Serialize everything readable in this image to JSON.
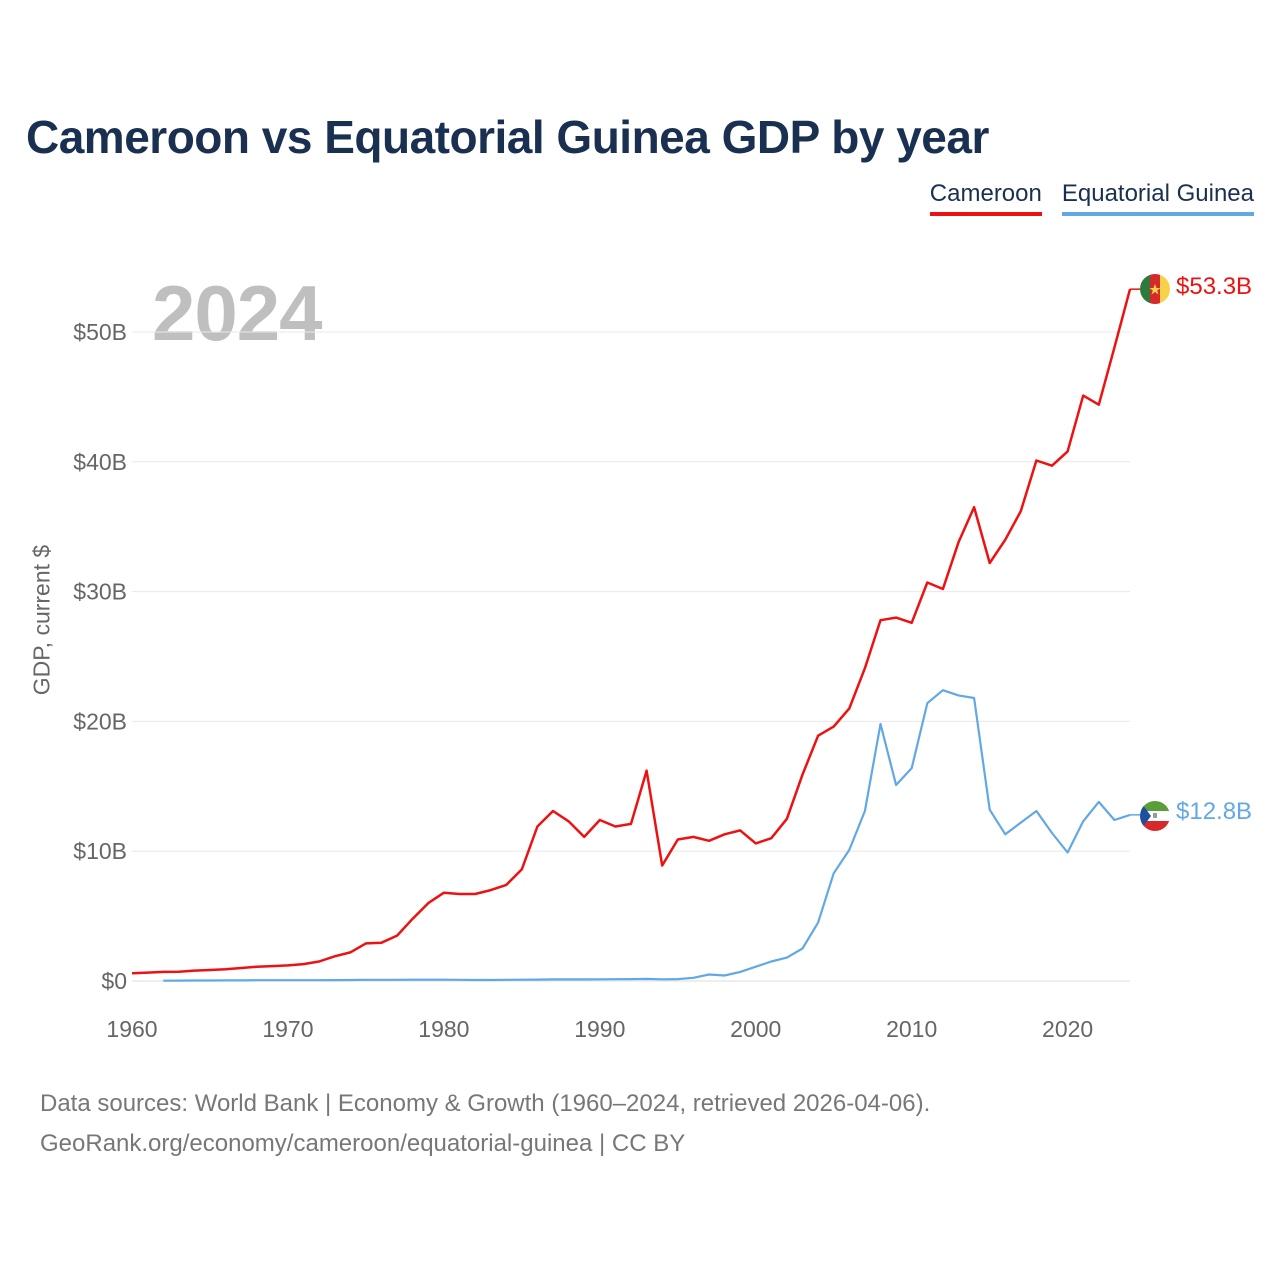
{
  "title": "Cameroon vs Equatorial Guinea GDP by year",
  "legend": [
    {
      "name": "Cameroon",
      "color": "#ee1111"
    },
    {
      "name": "Equatorial Guinea",
      "color": "#62a8e5"
    }
  ],
  "current_year": "2024",
  "end_labels": {
    "cameroon": "$53.3B",
    "equatorial_guinea": "$12.8B"
  },
  "source": {
    "line1": "Data sources: World Bank | Economy & Growth (1960–2024, retrieved 2026-04-06).",
    "line2": "GeoRank.org/economy/cameroon/equatorial-guinea | CC BY"
  },
  "flags": {
    "cameroon": "cameroon-flag-icon",
    "equatorial_guinea": "equatorial-guinea-flag-icon"
  },
  "chart_data": {
    "type": "line",
    "title": "Cameroon vs Equatorial Guinea GDP by year",
    "xlabel": "",
    "ylabel": "GDP, current $",
    "xlim": [
      1960,
      2024
    ],
    "ylim": [
      0,
      55
    ],
    "y_unit": "billion USD",
    "xticks": [
      1960,
      1970,
      1980,
      1990,
      2000,
      2010,
      2020
    ],
    "xtick_labels": [
      "1960",
      "1970",
      "1980",
      "1990",
      "2000",
      "2010",
      "2020"
    ],
    "yticks": [
      0,
      10,
      20,
      30,
      40,
      50
    ],
    "ytick_labels": [
      "$0",
      "$10B",
      "$20B",
      "$30B",
      "$40B",
      "$50B"
    ],
    "grid": true,
    "legend_position": "top-right",
    "series": [
      {
        "name": "Cameroon",
        "color": "#ee1111",
        "x": [
          1960,
          1961,
          1962,
          1963,
          1964,
          1965,
          1966,
          1967,
          1968,
          1969,
          1970,
          1971,
          1972,
          1973,
          1974,
          1975,
          1976,
          1977,
          1978,
          1979,
          1980,
          1981,
          1982,
          1983,
          1984,
          1985,
          1986,
          1987,
          1988,
          1989,
          1990,
          1991,
          1992,
          1993,
          1994,
          1995,
          1996,
          1997,
          1998,
          1999,
          2000,
          2001,
          2002,
          2003,
          2004,
          2005,
          2006,
          2007,
          2008,
          2009,
          2010,
          2011,
          2012,
          2013,
          2014,
          2015,
          2016,
          2017,
          2018,
          2019,
          2020,
          2021,
          2022,
          2023,
          2024
        ],
        "values": [
          0.6,
          0.65,
          0.7,
          0.72,
          0.8,
          0.85,
          0.9,
          1.0,
          1.1,
          1.15,
          1.2,
          1.3,
          1.5,
          1.9,
          2.2,
          2.9,
          2.95,
          3.5,
          4.8,
          6.0,
          6.8,
          6.7,
          6.7,
          7.0,
          7.4,
          8.6,
          11.9,
          13.1,
          12.3,
          11.1,
          12.4,
          11.9,
          12.1,
          16.2,
          8.9,
          10.9,
          11.1,
          10.8,
          11.3,
          11.6,
          10.6,
          11.0,
          12.5,
          15.9,
          18.9,
          19.6,
          21.0,
          24.1,
          27.8,
          28.0,
          27.6,
          30.7,
          30.2,
          33.8,
          36.5,
          32.2,
          34.0,
          36.2,
          40.1,
          39.7,
          40.8,
          45.1,
          44.4,
          48.8,
          53.3
        ]
      },
      {
        "name": "Equatorial Guinea",
        "color": "#62a8e5",
        "x": [
          1962,
          1963,
          1964,
          1965,
          1966,
          1967,
          1968,
          1969,
          1970,
          1971,
          1972,
          1973,
          1974,
          1975,
          1976,
          1977,
          1978,
          1979,
          1980,
          1981,
          1982,
          1983,
          1984,
          1985,
          1986,
          1987,
          1988,
          1989,
          1990,
          1991,
          1992,
          1993,
          1994,
          1995,
          1996,
          1997,
          1998,
          1999,
          2000,
          2001,
          2002,
          2003,
          2004,
          2005,
          2006,
          2007,
          2008,
          2009,
          2010,
          2011,
          2012,
          2013,
          2014,
          2015,
          2016,
          2017,
          2018,
          2019,
          2020,
          2021,
          2022,
          2023,
          2024
        ],
        "values": [
          0.02,
          0.03,
          0.04,
          0.04,
          0.05,
          0.05,
          0.06,
          0.06,
          0.06,
          0.06,
          0.06,
          0.07,
          0.08,
          0.09,
          0.09,
          0.09,
          0.1,
          0.1,
          0.1,
          0.09,
          0.08,
          0.08,
          0.09,
          0.1,
          0.11,
          0.12,
          0.12,
          0.12,
          0.13,
          0.14,
          0.15,
          0.16,
          0.13,
          0.15,
          0.25,
          0.5,
          0.42,
          0.7,
          1.1,
          1.5,
          1.8,
          2.5,
          4.5,
          8.3,
          10.1,
          13.1,
          19.8,
          15.1,
          16.4,
          21.4,
          22.4,
          22.0,
          21.8,
          13.2,
          11.3,
          12.2,
          13.1,
          11.4,
          9.9,
          12.3,
          13.8,
          12.4,
          12.8
        ]
      }
    ]
  }
}
